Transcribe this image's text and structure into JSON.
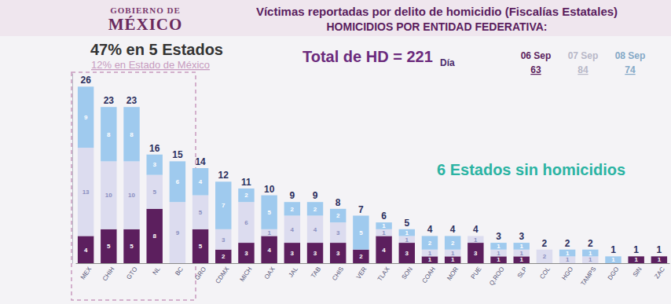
{
  "chart_data": {
    "type": "bar",
    "stacked": true,
    "logo": [
      "GOBIERNO DE",
      "MÉXICO"
    ],
    "title": "Víctimas reportadas por delito de homicidio (Fiscalías Estatales)",
    "subtitle": "HOMICIDIOS POR ENTIDAD FEDERATIVA:",
    "annotations": [
      "47% en 5 Estados",
      "12% en Estado de México",
      "Total de HD = 221",
      "6 Estados sin homicidios"
    ],
    "legend_title": "Día",
    "legend": "upper right",
    "data_labels": true,
    "tick_labels": "x",
    "ylim": [
      0,
      28
    ],
    "categories": [
      "MEX",
      "CHIH",
      "GTO",
      "NL",
      "BC",
      "GRO",
      "CDMX",
      "MICH",
      "OAX",
      "JAL",
      "TAB",
      "CHIS",
      "VER",
      "TLAX",
      "SON",
      "COAH",
      "MOR",
      "PUE",
      "Q.ROO",
      "SLP",
      "COL",
      "HGO",
      "TAMPS",
      "DGO",
      "SIN",
      "ZAC"
    ],
    "series": [
      {
        "name": "06 Sep",
        "color": "#5c1f5e",
        "total": 63,
        "values": [
          4,
          5,
          5,
          8,
          0,
          5,
          2,
          3,
          4,
          3,
          3,
          3,
          2,
          4,
          3,
          1,
          1,
          3,
          1,
          1,
          0,
          0,
          0,
          0,
          1,
          1
        ]
      },
      {
        "name": "07 Sep",
        "color": "#dcdcef",
        "total": 84,
        "values": [
          13,
          10,
          10,
          5,
          9,
          5,
          3,
          6,
          1,
          4,
          4,
          3,
          0,
          1,
          1,
          1,
          1,
          1,
          1,
          1,
          2,
          1,
          1,
          0,
          0,
          0
        ]
      },
      {
        "name": "08 Sep",
        "color": "#9fcaee",
        "total": 74,
        "values": [
          9,
          8,
          8,
          3,
          6,
          4,
          7,
          2,
          5,
          2,
          2,
          2,
          5,
          1,
          1,
          2,
          2,
          0,
          1,
          1,
          0,
          1,
          1,
          1,
          0,
          0
        ]
      }
    ],
    "totals": [
      26,
      23,
      23,
      16,
      15,
      14,
      12,
      11,
      10,
      9,
      9,
      8,
      7,
      6,
      5,
      4,
      4,
      4,
      3,
      3,
      2,
      2,
      2,
      1,
      1,
      1
    ]
  }
}
